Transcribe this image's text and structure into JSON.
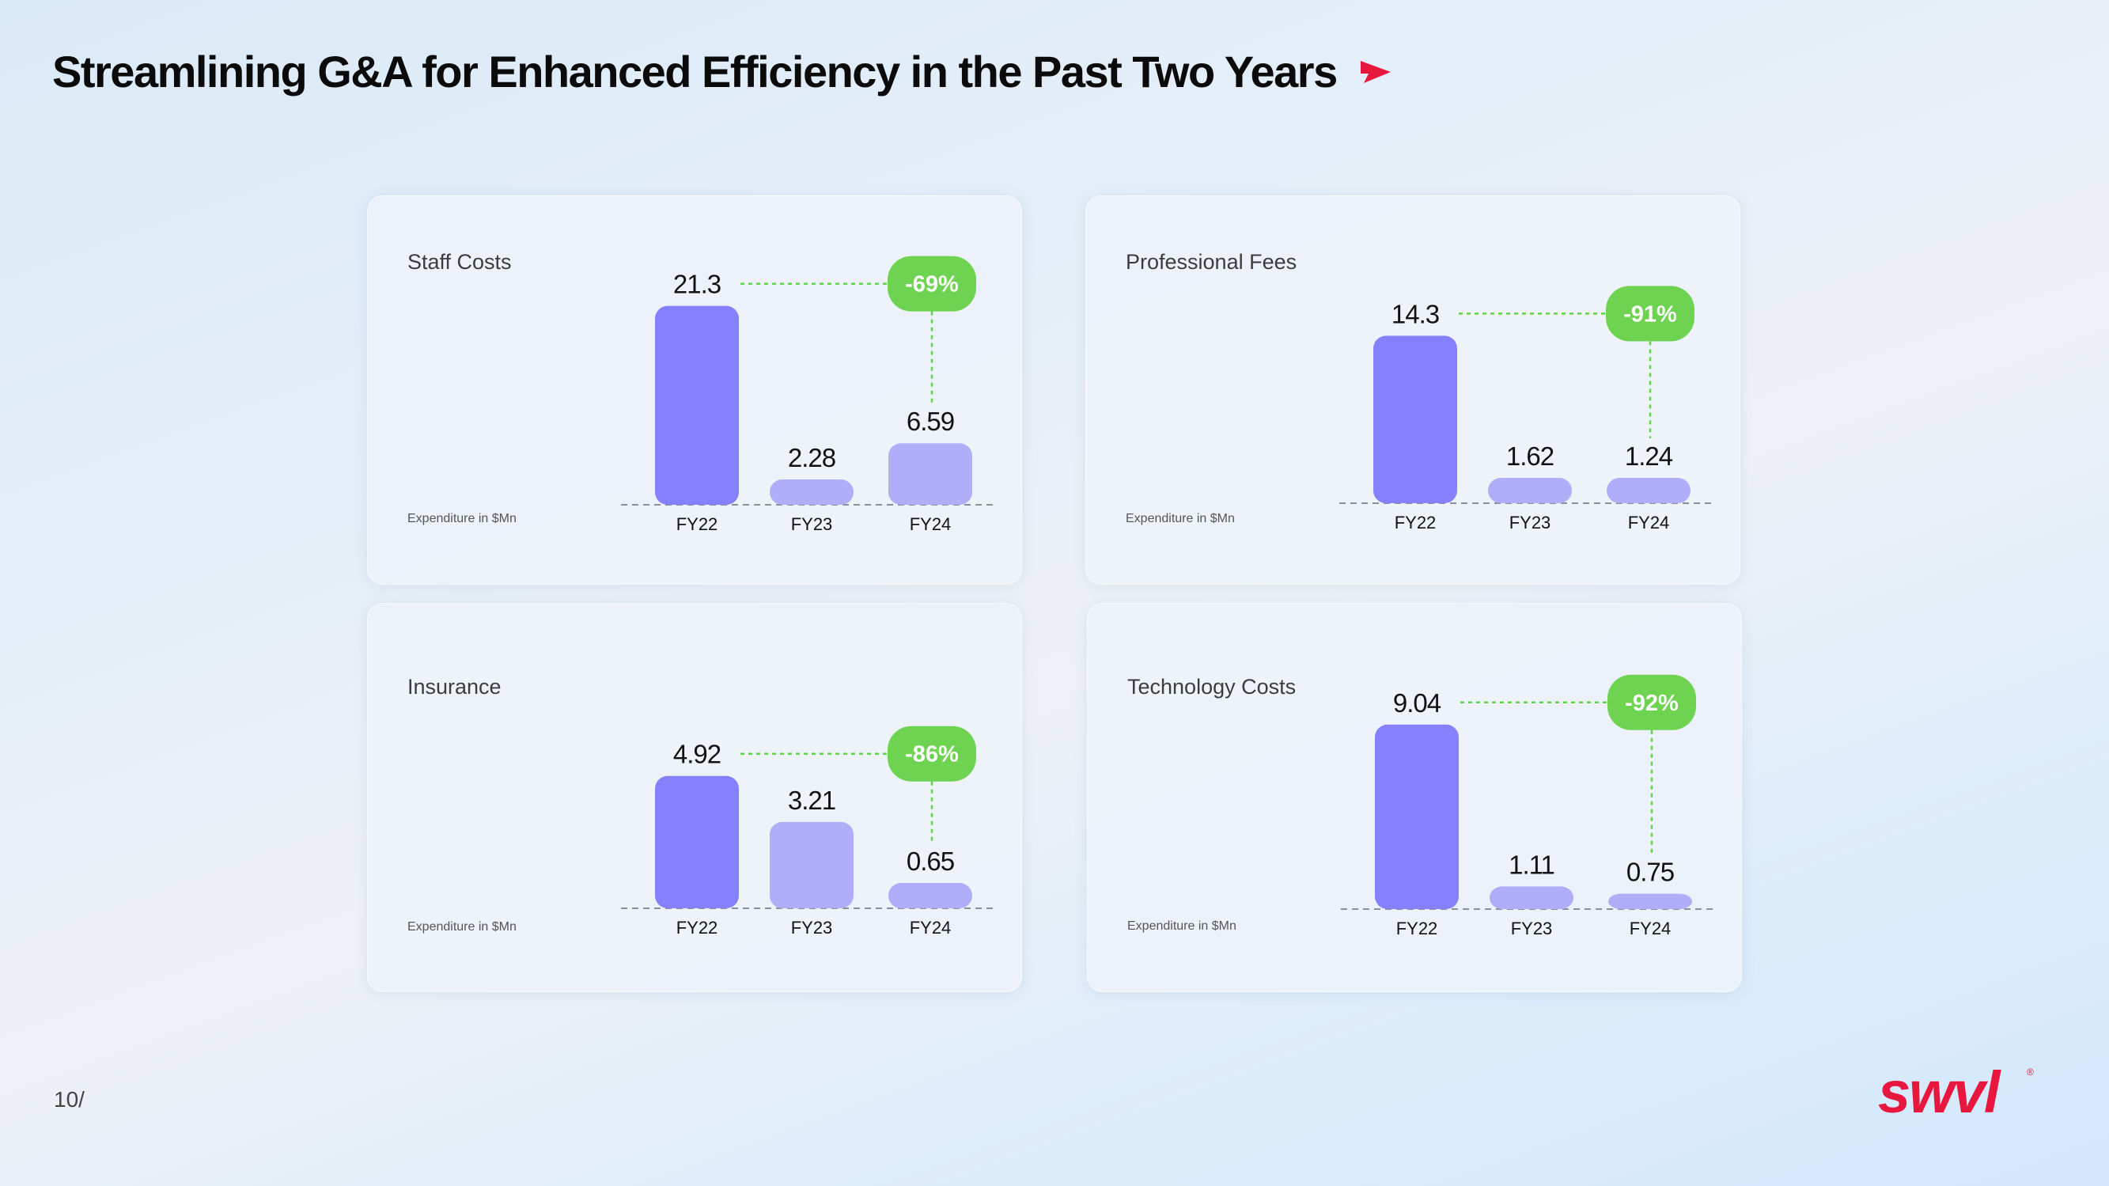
{
  "title": "Streamlining G&A for Enhanced Efficiency in the Past Two Years",
  "page_number": "10/",
  "logo_text": "swvl",
  "colors": {
    "fy22": "#8580fb",
    "fy23": "#b0aef8",
    "fy24": "#b0aef8",
    "connector": "#5fd54a",
    "badge": "#6fd352",
    "brand": "#e8173d"
  },
  "chart_data": [
    {
      "type": "bar",
      "title": "Staff Costs",
      "ylabel": "Expenditure in $Mn",
      "categories": [
        "FY22",
        "FY23",
        "FY24"
      ],
      "values": [
        21.3,
        2.28,
        6.59
      ],
      "value_labels": [
        "21.3",
        "2.28",
        "6.59"
      ],
      "change_label": "-69%"
    },
    {
      "type": "bar",
      "title": "Professional Fees",
      "ylabel": "Expenditure in $Mn",
      "categories": [
        "FY22",
        "FY23",
        "FY24"
      ],
      "values": [
        14.3,
        1.62,
        1.24
      ],
      "value_labels": [
        "14.3",
        "1.62",
        "1.24"
      ],
      "change_label": "-91%"
    },
    {
      "type": "bar",
      "title": "Insurance",
      "ylabel": "Expenditure in $Mn",
      "categories": [
        "FY22",
        "FY23",
        "FY24"
      ],
      "values": [
        4.92,
        3.21,
        0.65
      ],
      "value_labels": [
        "4.92",
        "3.21",
        "0.65"
      ],
      "change_label": "-86%"
    },
    {
      "type": "bar",
      "title": "Technology Costs",
      "ylabel": "Expenditure in $Mn",
      "categories": [
        "FY22",
        "FY23",
        "FY24"
      ],
      "values": [
        9.04,
        1.11,
        0.75
      ],
      "value_labels": [
        "9.04",
        "1.11",
        "0.75"
      ],
      "change_label": "-92%"
    }
  ]
}
